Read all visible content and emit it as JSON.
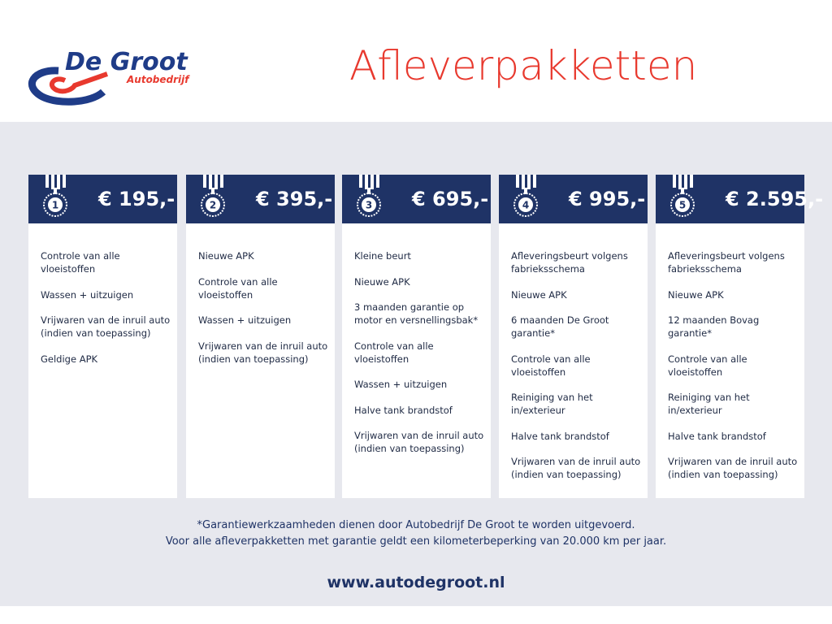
{
  "logo": {
    "name": "De Groot",
    "sub": "Autobedrijf",
    "colors": {
      "blue": "#1f3c88",
      "red": "#e8392e"
    }
  },
  "title": "Afleverpakketten",
  "colors": {
    "header": "#1f3366",
    "accent": "#e8392e",
    "background": "#e7e8ee"
  },
  "packages": [
    {
      "number": "1",
      "price": "€ 195,-",
      "items": [
        "Controle van alle vloeistoffen",
        "Wassen + uitzuigen",
        "Vrijwaren van de inruil auto (indien van toepassing)",
        "Geldige APK"
      ]
    },
    {
      "number": "2",
      "price": "€ 395,-",
      "items": [
        "Nieuwe APK",
        "Controle van alle vloeistoffen",
        "Wassen + uitzuigen",
        "Vrijwaren van de inruil auto (indien van toepassing)"
      ]
    },
    {
      "number": "3",
      "price": "€ 695,-",
      "items": [
        "Kleine beurt",
        "Nieuwe APK",
        "3 maanden garantie op motor en versnellingsbak*",
        "Controle van alle vloeistoffen",
        "Wassen + uitzuigen",
        "Halve tank brandstof",
        "Vrijwaren van de inruil auto (indien van toepassing)"
      ]
    },
    {
      "number": "4",
      "price": "€ 995,-",
      "items": [
        "Afleveringsbeurt volgens fabrieksschema",
        "Nieuwe APK",
        "6 maanden De Groot garantie*",
        "Controle van alle vloeistoffen",
        "Reiniging van het in/exterieur",
        "Halve tank brandstof",
        "Vrijwaren van de inruil auto (indien van toepassing)"
      ]
    },
    {
      "number": "5",
      "price": "€ 2.595,-",
      "items": [
        "Afleveringsbeurt volgens fabrieksschema",
        "Nieuwe APK",
        "12 maanden Bovag garantie*",
        "Controle van alle vloeistoffen",
        "Reiniging van het in/exterieur",
        "Halve tank brandstof",
        "Vrijwaren van de inruil auto (indien van toepassing)"
      ]
    }
  ],
  "footnote": [
    "*Garantiewerkzaamheden dienen door Autobedrijf De Groot te worden uitgevoerd.",
    "Voor alle afleverpakketten met garantie geldt een kilometerbeperking van 20.000 km per jaar."
  ],
  "website": "www.autodegroot.nl"
}
